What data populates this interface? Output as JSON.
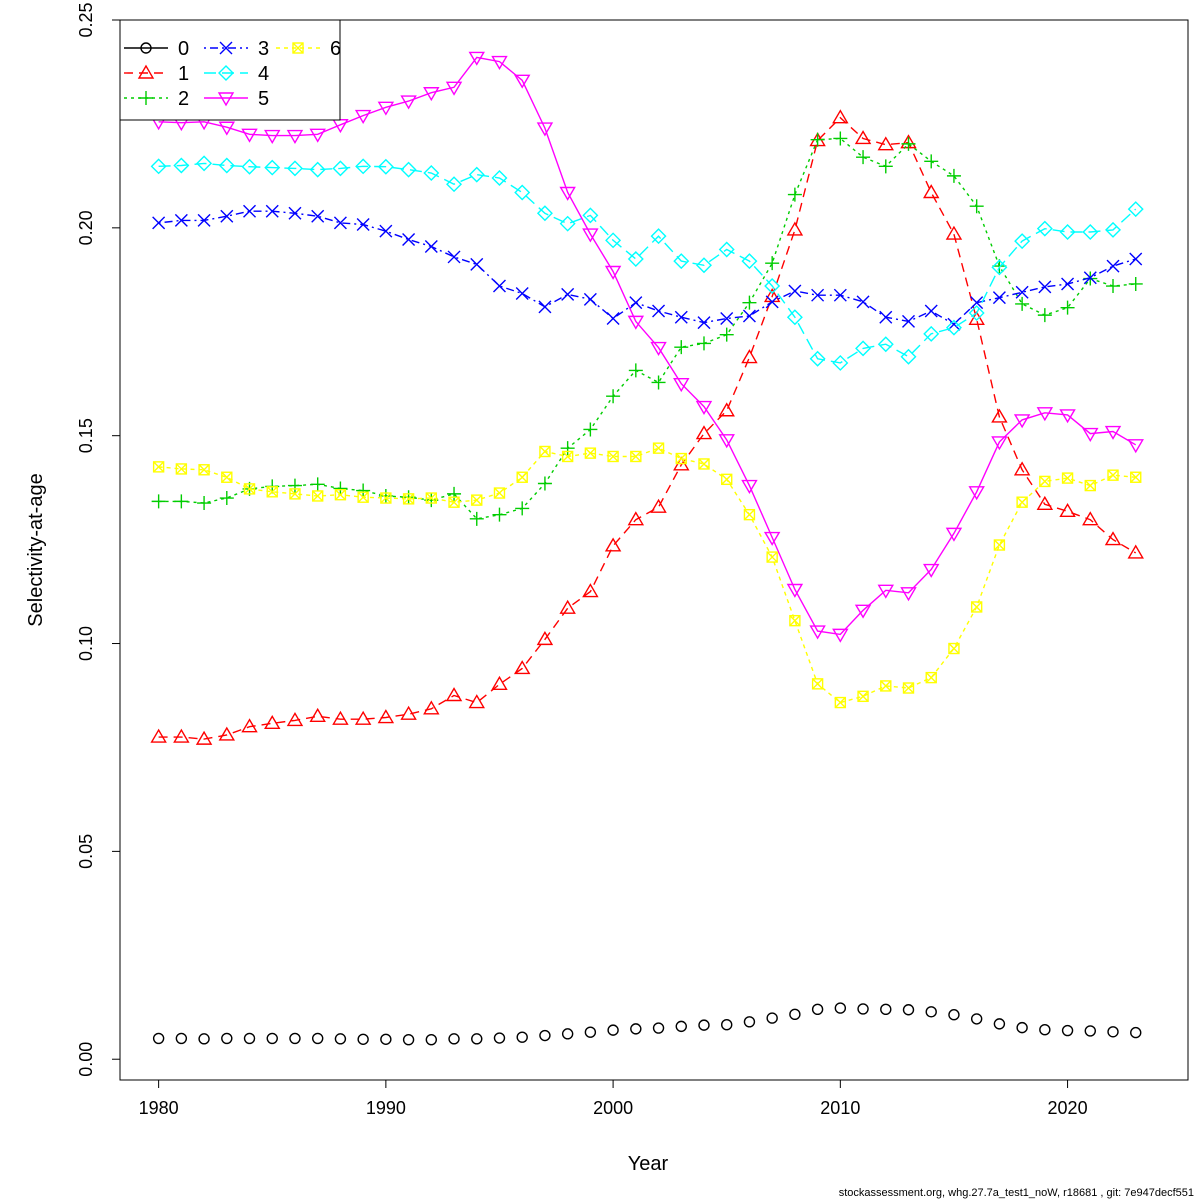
{
  "chart_data": {
    "type": "line",
    "xlabel": "Year",
    "ylabel": "Selectivity-at-age",
    "xlim": [
      1978.3,
      2025.3
    ],
    "ylim": [
      -0.005,
      0.25
    ],
    "x_ticks": [
      1980,
      1990,
      2000,
      2010,
      2020
    ],
    "x_tick_labels": [
      "1980",
      "1990",
      "2000",
      "2010",
      "2020"
    ],
    "y_ticks": [
      0.0,
      0.05,
      0.1,
      0.15,
      0.2,
      0.25
    ],
    "y_tick_labels": [
      "0.00",
      "0.05",
      "0.10",
      "0.15",
      "0.20",
      "0.25"
    ],
    "legend_position": "top-left",
    "legend_layout": [
      [
        "0",
        "3",
        "6"
      ],
      [
        "1",
        "4"
      ],
      [
        "2",
        "5"
      ]
    ],
    "grid": false,
    "x": [
      1980,
      1981,
      1982,
      1983,
      1984,
      1985,
      1986,
      1987,
      1988,
      1989,
      1990,
      1991,
      1992,
      1993,
      1994,
      1995,
      1996,
      1997,
      1998,
      1999,
      2000,
      2001,
      2002,
      2003,
      2004,
      2005,
      2006,
      2007,
      2008,
      2009,
      2010,
      2011,
      2012,
      2013,
      2014,
      2015,
      2016,
      2017,
      2018,
      2019,
      2020,
      2021,
      2022,
      2023
    ],
    "series": [
      {
        "name": "0",
        "color": "#000000",
        "marker": "circle",
        "dash": "",
        "values": [
          0.005,
          0.005,
          0.0049,
          0.005,
          0.005,
          0.005,
          0.005,
          0.005,
          0.0049,
          0.0048,
          0.0048,
          0.0047,
          0.0047,
          0.0049,
          0.0049,
          0.0051,
          0.0053,
          0.0057,
          0.0061,
          0.0065,
          0.007,
          0.0073,
          0.0075,
          0.0079,
          0.0082,
          0.0083,
          0.009,
          0.0099,
          0.0108,
          0.012,
          0.0123,
          0.0121,
          0.012,
          0.0119,
          0.0114,
          0.0107,
          0.0097,
          0.0085,
          0.0076,
          0.0071,
          0.0069,
          0.0068,
          0.0066,
          0.0064
        ]
      },
      {
        "name": "1",
        "color": "#ff0000",
        "marker": "triangle-up",
        "dash": "9,6",
        "values": [
          0.0775,
          0.0775,
          0.077,
          0.078,
          0.08,
          0.0808,
          0.0815,
          0.0825,
          0.0818,
          0.0818,
          0.0822,
          0.083,
          0.0843,
          0.0875,
          0.0858,
          0.0902,
          0.094,
          0.101,
          0.1085,
          0.1125,
          0.1235,
          0.1298,
          0.1328,
          0.143,
          0.1505,
          0.156,
          0.1688,
          0.1835,
          0.1995,
          0.221,
          0.2265,
          0.2215,
          0.22,
          0.2205,
          0.2085,
          0.1985,
          0.178,
          0.1545,
          0.1418,
          0.1335,
          0.1318,
          0.1298,
          0.125,
          0.1218
        ]
      },
      {
        "name": "2",
        "color": "#00cd00",
        "marker": "plus",
        "dash": "3,4",
        "values": [
          0.1342,
          0.1342,
          0.1338,
          0.135,
          0.1372,
          0.1378,
          0.138,
          0.1383,
          0.1373,
          0.1368,
          0.1355,
          0.1352,
          0.1345,
          0.136,
          0.13,
          0.131,
          0.1325,
          0.1385,
          0.147,
          0.1515,
          0.1595,
          0.1657,
          0.1628,
          0.1713,
          0.1722,
          0.1743,
          0.182,
          0.1915,
          0.208,
          0.2212,
          0.2215,
          0.217,
          0.2148,
          0.2202,
          0.216,
          0.2125,
          0.2052,
          0.1908,
          0.1817,
          0.179,
          0.1808,
          0.1878,
          0.186,
          0.1865
        ]
      },
      {
        "name": "3",
        "color": "#0000ff",
        "marker": "cross",
        "dash": "2,4,8,4",
        "values": [
          0.2012,
          0.2018,
          0.2018,
          0.2028,
          0.204,
          0.204,
          0.2035,
          0.2028,
          0.2012,
          0.2008,
          0.1992,
          0.1972,
          0.1955,
          0.193,
          0.1912,
          0.186,
          0.1842,
          0.181,
          0.184,
          0.1828,
          0.1782,
          0.182,
          0.18,
          0.1785,
          0.1772,
          0.1782,
          0.1788,
          0.1822,
          0.1848,
          0.1838,
          0.1838,
          0.1822,
          0.1785,
          0.1775,
          0.18,
          0.1768,
          0.182,
          0.1832,
          0.1845,
          0.1858,
          0.1865,
          0.188,
          0.1908,
          0.1925
        ]
      },
      {
        "name": "4",
        "color": "#00ffff",
        "marker": "diamond",
        "dash": "12,6",
        "values": [
          0.2148,
          0.215,
          0.2155,
          0.215,
          0.2147,
          0.2145,
          0.2143,
          0.214,
          0.2143,
          0.2148,
          0.2147,
          0.214,
          0.2132,
          0.2105,
          0.2128,
          0.212,
          0.2085,
          0.2035,
          0.201,
          0.203,
          0.197,
          0.1925,
          0.198,
          0.192,
          0.191,
          0.1948,
          0.192,
          0.186,
          0.1785,
          0.1685,
          0.1675,
          0.171,
          0.172,
          0.169,
          0.1745,
          0.176,
          0.1795,
          0.1905,
          0.1968,
          0.1998,
          0.199,
          0.199,
          0.1995,
          0.2045
        ]
      },
      {
        "name": "5",
        "color": "#ff00ff",
        "marker": "triangle-down",
        "dash": "",
        "values": [
          0.2255,
          0.2253,
          0.2255,
          0.2242,
          0.2225,
          0.2222,
          0.2222,
          0.2225,
          0.2248,
          0.227,
          0.229,
          0.2305,
          0.2325,
          0.2338,
          0.241,
          0.24,
          0.2355,
          0.224,
          0.2085,
          0.1985,
          0.1895,
          0.1775,
          0.1712,
          0.1625,
          0.157,
          0.149,
          0.138,
          0.1255,
          0.113,
          0.103,
          0.1022,
          0.108,
          0.1128,
          0.1122,
          0.1178,
          0.1265,
          0.1365,
          0.1485,
          0.1538,
          0.1555,
          0.155,
          0.1505,
          0.151,
          0.1478
        ]
      },
      {
        "name": "6",
        "color": "#ffff00",
        "marker": "square-x",
        "dash": "4,4",
        "values": [
          0.1425,
          0.142,
          0.1418,
          0.14,
          0.1372,
          0.1365,
          0.136,
          0.1355,
          0.1358,
          0.1352,
          0.135,
          0.1348,
          0.135,
          0.134,
          0.1345,
          0.1362,
          0.14,
          0.1462,
          0.145,
          0.1458,
          0.145,
          0.145,
          0.147,
          0.1445,
          0.1432,
          0.1395,
          0.131,
          0.1208,
          0.1055,
          0.0903,
          0.0858,
          0.0873,
          0.0898,
          0.0893,
          0.0918,
          0.0988,
          0.1088,
          0.1237,
          0.134,
          0.139,
          0.1398,
          0.138,
          0.1405,
          0.14
        ]
      }
    ]
  },
  "footer_text": "stockassessment.org, whg.27.7a_test1_noW, r18681 , git: 7e947decf551"
}
